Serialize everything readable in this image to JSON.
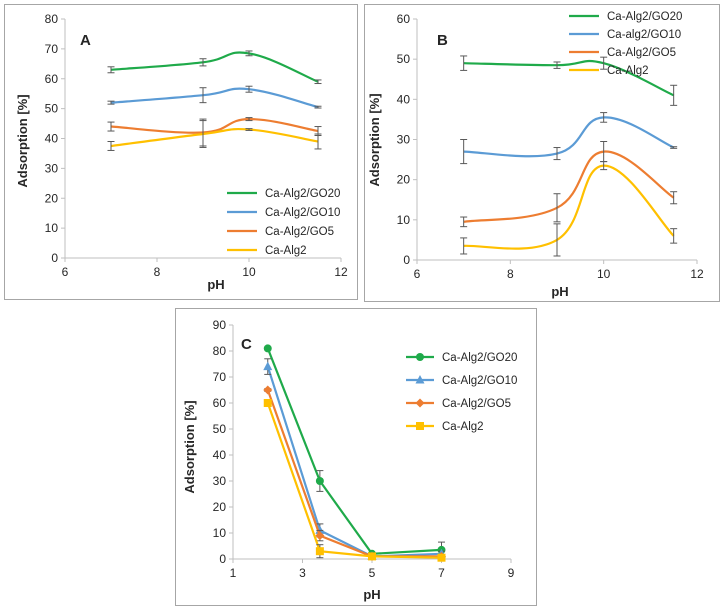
{
  "colors": {
    "green": "#1faa4a",
    "blue": "#5b9bd5",
    "orange": "#ed7d31",
    "yellow": "#ffc000",
    "axis": "#bfbfbf",
    "errorbar": "#595959"
  },
  "chart_data": [
    {
      "panel": "A",
      "type": "line",
      "smooth": true,
      "xlabel": "pH",
      "ylabel": "Adsorption [%]",
      "xlim": [
        6,
        12
      ],
      "ylim": [
        0,
        80
      ],
      "xticks": [
        6,
        8,
        10,
        12
      ],
      "yticks": [
        0,
        10,
        20,
        30,
        40,
        50,
        60,
        70,
        80
      ],
      "legend_position": "bottom-right",
      "series": [
        {
          "name": "Ca-Alg2/GO20",
          "color": "green",
          "x": [
            7,
            9,
            10,
            11.5
          ],
          "y": [
            63,
            65.5,
            68.5,
            59
          ],
          "err": [
            1,
            1.2,
            0.8,
            0.6
          ]
        },
        {
          "name": "Ca-Alg2/GO10",
          "color": "blue",
          "x": [
            7,
            9,
            10,
            11.5
          ],
          "y": [
            52,
            54.5,
            56.5,
            50.5
          ],
          "err": [
            0.5,
            2.5,
            1,
            0.3
          ]
        },
        {
          "name": "Ca-Alg2/GO5",
          "color": "orange",
          "x": [
            7,
            9,
            10,
            11.5
          ],
          "y": [
            44,
            42,
            46.5,
            42.5
          ],
          "err": [
            1.5,
            4.5,
            0.5,
            1.5
          ]
        },
        {
          "name": "Ca-Alg2",
          "color": "yellow",
          "x": [
            7,
            9,
            10,
            11.5
          ],
          "y": [
            37.5,
            41.5,
            43,
            39
          ],
          "err": [
            1.5,
            4.5,
            0.3,
            2.5
          ]
        }
      ]
    },
    {
      "panel": "B",
      "type": "line",
      "smooth": true,
      "xlabel": "pH",
      "ylabel": "Adsorption [%]",
      "xlim": [
        6,
        12
      ],
      "ylim": [
        0,
        60
      ],
      "xticks": [
        6,
        8,
        10,
        12
      ],
      "yticks": [
        0,
        10,
        20,
        30,
        40,
        50,
        60
      ],
      "legend_position": "top-right",
      "series": [
        {
          "name": "Ca-Alg2/GO20",
          "color": "green",
          "x": [
            7,
            9,
            10,
            11.5
          ],
          "y": [
            49,
            48.5,
            49,
            41
          ],
          "err": [
            1.8,
            0.8,
            1.5,
            2.5
          ]
        },
        {
          "name": "Ca-alg2/GO10",
          "color": "blue",
          "x": [
            7,
            9,
            10,
            11.5
          ],
          "y": [
            27,
            26.5,
            35.5,
            28
          ],
          "err": [
            3,
            1.5,
            1.2,
            0.2
          ]
        },
        {
          "name": "Ca-Alg2/GO5",
          "color": "orange",
          "x": [
            7,
            9,
            10,
            11.5
          ],
          "y": [
            9.5,
            13,
            27,
            15.5
          ],
          "err": [
            1.2,
            3.5,
            2.5,
            1.5
          ]
        },
        {
          "name": "Ca-Alg2",
          "color": "yellow",
          "x": [
            7,
            9,
            10,
            11.5
          ],
          "y": [
            3.5,
            5,
            23.5,
            6
          ],
          "err": [
            2,
            4,
            1,
            1.8
          ]
        }
      ]
    },
    {
      "panel": "C",
      "type": "line",
      "smooth": false,
      "xlabel": "pH",
      "ylabel": "Adsorption [%]",
      "xlim": [
        1,
        9
      ],
      "ylim": [
        0,
        90
      ],
      "xticks": [
        1,
        3,
        5,
        7,
        9
      ],
      "yticks": [
        0,
        10,
        20,
        30,
        40,
        50,
        60,
        70,
        80,
        90
      ],
      "legend_position": "top-right",
      "series": [
        {
          "name": "Ca-Alg2/GO20",
          "color": "green",
          "marker": "circle",
          "x": [
            2,
            3.5,
            5,
            7
          ],
          "y": [
            81,
            30,
            2,
            3.5
          ],
          "err": [
            0.5,
            4,
            0.3,
            3
          ]
        },
        {
          "name": "Ca-Alg2/GO10",
          "color": "blue",
          "marker": "triangle",
          "x": [
            2,
            3.5,
            5,
            7
          ],
          "y": [
            74,
            11,
            1,
            2
          ],
          "err": [
            3,
            2.5,
            0.3,
            1
          ]
        },
        {
          "name": "Ca-Alg2/GO5",
          "color": "orange",
          "marker": "diamond",
          "x": [
            2,
            3.5,
            5,
            7
          ],
          "y": [
            65,
            9,
            1,
            1
          ],
          "err": [
            0.5,
            2,
            0.3,
            0.5
          ]
        },
        {
          "name": "Ca-Alg2",
          "color": "yellow",
          "marker": "square",
          "x": [
            2,
            3.5,
            5,
            7
          ],
          "y": [
            60,
            3,
            1,
            0.5
          ],
          "err": [
            1,
            2.5,
            0.3,
            0.3
          ]
        }
      ]
    }
  ]
}
